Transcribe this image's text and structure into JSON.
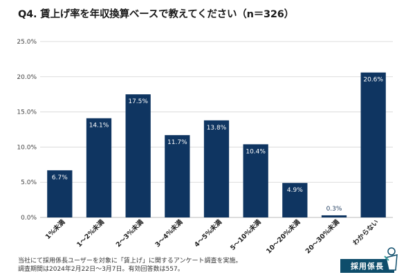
{
  "title": "Q4. 賃上げ率を年収換算ベースで教えてください（n＝326）",
  "footnote": [
    "当社にて採用係長ユーザーを対象に「賃上げ」に関するアンケート調査を実施。",
    "調査期間は2024年2月22日～3月7日。有効回答数は557。"
  ],
  "brand": {
    "label": "採用係長"
  },
  "colors": {
    "bar": "#0f3561",
    "grid": "#dcdcdc",
    "label_inside": "#ffffff",
    "label_outside": "#1f3b5e"
  },
  "chart_data": {
    "type": "bar",
    "categories": [
      "1%未満",
      "1～2%未満",
      "2～3%未満",
      "3～4%未満",
      "4～5%未満",
      "5～10%未満",
      "10～20%未満",
      "20～30%未満",
      "わからない"
    ],
    "values": [
      6.7,
      14.1,
      17.5,
      11.7,
      13.8,
      10.4,
      4.9,
      0.3,
      20.6
    ],
    "data_labels": [
      "6.7%",
      "14.1%",
      "17.5%",
      "11.7%",
      "13.8%",
      "10.4%",
      "4.9%",
      "0.3%",
      "20.6%"
    ],
    "yticks": [
      "0.0%",
      "5.0%",
      "10.0%",
      "15.0%",
      "20.0%",
      "25.0%"
    ],
    "ylim": [
      0,
      25
    ],
    "grid": true,
    "legend": "none"
  }
}
